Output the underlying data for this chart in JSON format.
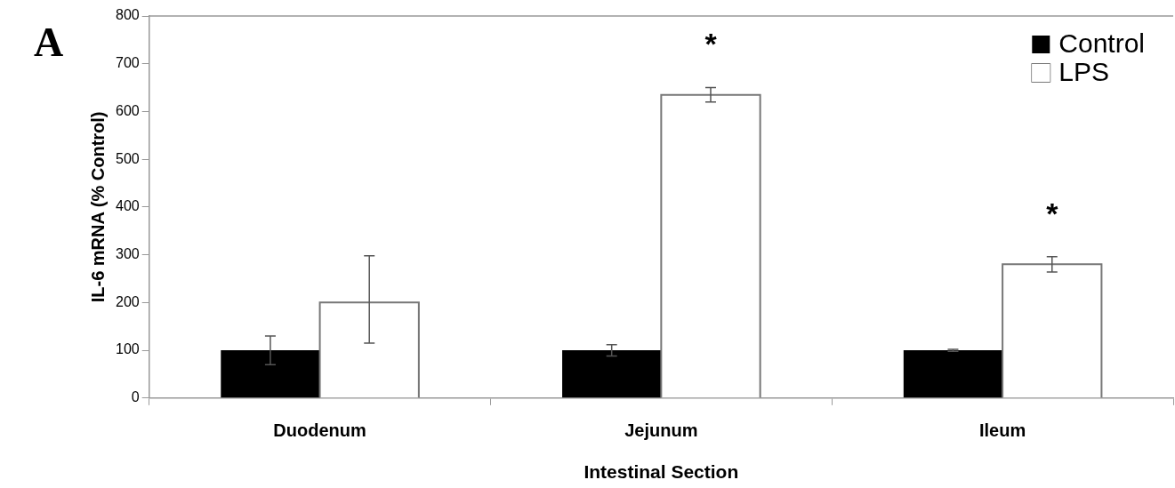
{
  "chart_data": {
    "type": "bar",
    "xlabel": "Intestinal Section",
    "ylabel": "IL-6 mRNA (% Control)",
    "categories": [
      "Duodenum",
      "Jejunum",
      "Ileum"
    ],
    "series": [
      {
        "name": "Control",
        "color": "#000000",
        "values": [
          100,
          100,
          100
        ],
        "errors": [
          30,
          12,
          2
        ]
      },
      {
        "name": "LPS",
        "color": "#ffffff",
        "values": [
          200,
          635,
          280
        ],
        "errors": [
          [
            115,
            298
          ],
          15,
          16
        ]
      }
    ],
    "ylim": [
      0,
      800
    ],
    "yticks": [
      0,
      100,
      200,
      300,
      400,
      500,
      600,
      700,
      800
    ],
    "grid": false,
    "legend": "top right",
    "annotations": [
      "A",
      {
        "text": "*",
        "x": "Jejunum",
        "y": 635
      },
      {
        "text": "*",
        "x": "Ileum",
        "y": 280
      }
    ]
  }
}
